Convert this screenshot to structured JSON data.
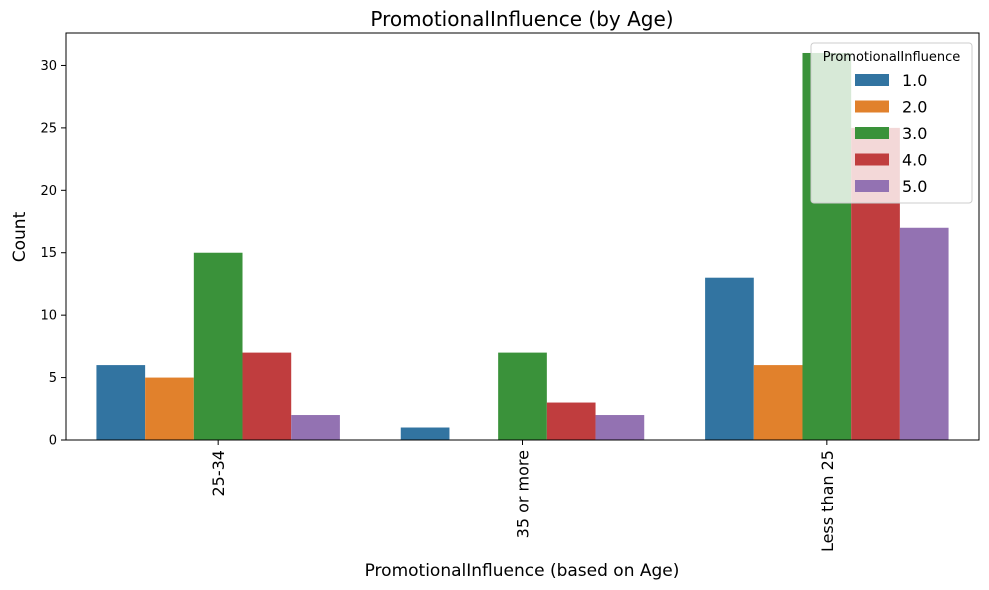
{
  "chart_data": {
    "type": "bar",
    "title": "PromotionalInfluence (by Age)",
    "xlabel": "PromotionalInfluence (based on Age)",
    "ylabel": "Count",
    "categories": [
      "25-34",
      "35 or more",
      "Less than 25"
    ],
    "series": [
      {
        "name": "1.0",
        "color": "#3274a1",
        "values": [
          6,
          1,
          13
        ]
      },
      {
        "name": "2.0",
        "color": "#e1812c",
        "values": [
          5,
          0,
          6
        ]
      },
      {
        "name": "3.0",
        "color": "#3a923a",
        "values": [
          15,
          7,
          31
        ]
      },
      {
        "name": "4.0",
        "color": "#c03d3e",
        "values": [
          7,
          3,
          25
        ]
      },
      {
        "name": "5.0",
        "color": "#9372b2",
        "values": [
          2,
          2,
          17
        ]
      }
    ],
    "ylim": [
      0,
      32.6
    ],
    "yticks": [
      0,
      5,
      10,
      15,
      20,
      25,
      30
    ],
    "legend": {
      "title": "PromotionalInfluence",
      "placement": "top-right"
    },
    "grid": false
  }
}
